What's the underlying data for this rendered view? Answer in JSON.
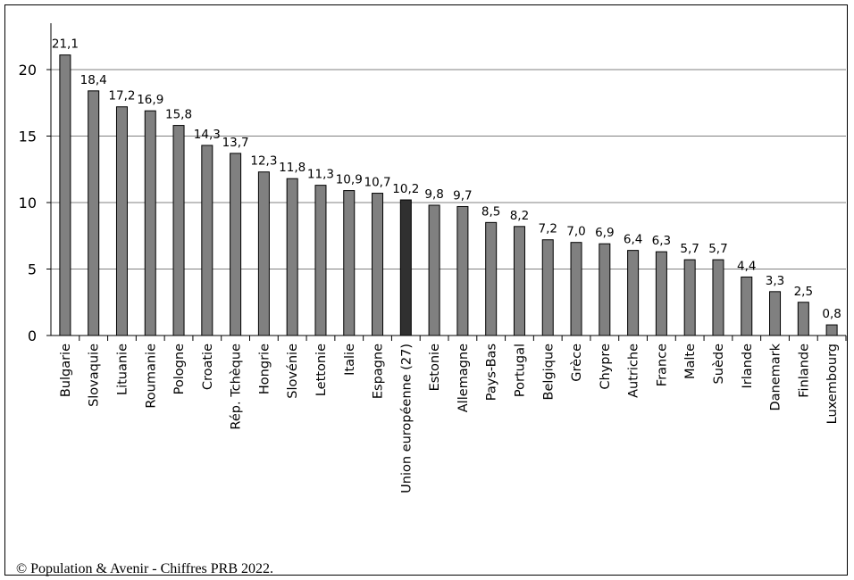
{
  "chart_data": {
    "type": "bar",
    "categories": [
      "Bulgarie",
      "Slovaquie",
      "Lituanie",
      "Roumanie",
      "Pologne",
      "Croatie",
      "Rép. Tchèque",
      "Hongrie",
      "Slovénie",
      "Lettonie",
      "Italie",
      "Espagne",
      "Union européenne (27)",
      "Estonie",
      "Allemagne",
      "Pays-Bas",
      "Portugal",
      "Belgique",
      "Grèce",
      "Chypre",
      "Autriche",
      "France",
      "Malte",
      "Suède",
      "Irlande",
      "Danemark",
      "Finlande",
      "Luxembourg"
    ],
    "values": [
      21.1,
      18.4,
      17.2,
      16.9,
      15.8,
      14.3,
      13.7,
      12.3,
      11.8,
      11.3,
      10.9,
      10.7,
      10.2,
      9.8,
      9.7,
      8.5,
      8.2,
      7.2,
      7.0,
      6.9,
      6.4,
      6.3,
      5.7,
      5.7,
      4.4,
      3.3,
      2.5,
      0.8
    ],
    "data_labels": [
      "21,1",
      "18,4",
      "17,2",
      "16,9",
      "15,8",
      "14,3",
      "13,7",
      "12,3",
      "11,8",
      "11,3",
      "10,9",
      "10,7",
      "10,2",
      "9,8",
      "9,7",
      "8,5",
      "8,2",
      "7,2",
      "7,0",
      "6,9",
      "6,4",
      "6,3",
      "5,7",
      "5,7",
      "4,4",
      "3,3",
      "2,5",
      "0,8"
    ],
    "highlight_category": "Union européenne (27)",
    "yticks": [
      0,
      5,
      10,
      15,
      20
    ],
    "ylim": [
      0,
      22
    ],
    "grid": true,
    "legend": "none",
    "bar_color": "#808080",
    "highlight_color": "#303030",
    "grid_color": "#808080"
  },
  "source": "© Population & Avenir - Chiffres  PRB 2022."
}
